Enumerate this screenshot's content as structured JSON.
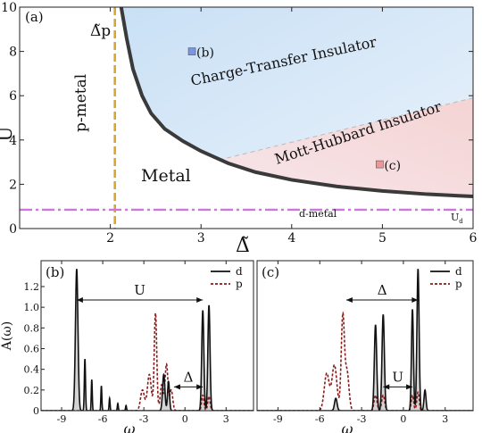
{
  "chart_data": [
    {
      "type": "line",
      "panel_label": "(a)",
      "xlabel": "Δ̃",
      "ylabel": "U",
      "xlim": [
        1,
        6
      ],
      "ylim": [
        0,
        10
      ],
      "x_ticks": [
        2,
        3,
        4,
        5,
        6
      ],
      "y_ticks": [
        0,
        2,
        4,
        6,
        8,
        10
      ],
      "regions": [
        {
          "label": "Charge-Transfer Insulator",
          "color": "#d6e8f8"
        },
        {
          "label": "Mott-Hubbard Insulator",
          "color": "#f7dcdc"
        },
        {
          "label": "Metal",
          "color": "#ffffff"
        },
        {
          "label": "p-metal",
          "color": "#ffffff"
        }
      ],
      "boundary": {
        "x": [
          2.12,
          2.18,
          2.25,
          2.35,
          2.45,
          2.6,
          2.8,
          3.0,
          3.3,
          3.6,
          4.0,
          4.5,
          5.0,
          5.5,
          6.0
        ],
        "y": [
          10,
          8.6,
          7.2,
          6.0,
          5.2,
          4.5,
          3.95,
          3.5,
          2.95,
          2.55,
          2.2,
          1.9,
          1.7,
          1.55,
          1.45
        ]
      },
      "ct_mh_divider": {
        "x": [
          3.2,
          6.0
        ],
        "y": [
          3.1,
          5.9
        ]
      },
      "delta_p_line": {
        "x": 2.05,
        "label": "Δ̃p",
        "color": "#d9a632"
      },
      "u_d_line": {
        "y": 0.85,
        "label": "U",
        "subscript": "d",
        "color": "#cc77dd"
      },
      "d_metal_label": "d-metal",
      "markers": [
        {
          "label": "(b)",
          "x": 2.9,
          "y": 8.0,
          "color": "#7b96dd"
        },
        {
          "label": "(c)",
          "x": 4.97,
          "y": 2.9,
          "color": "#e89a9a"
        }
      ]
    },
    {
      "type": "line",
      "panel_label": "(b)",
      "xlabel": "ω",
      "ylabel": "A(ω)",
      "xlim": [
        -10.5,
        5
      ],
      "ylim": [
        0,
        1.45
      ],
      "x_ticks": [
        -9,
        -6,
        -3,
        0,
        3
      ],
      "y_ticks": [
        0,
        0.2,
        0.4,
        0.6,
        0.8,
        1.0,
        1.2
      ],
      "series": [
        {
          "name": "d",
          "color": "#111111",
          "style": "solid",
          "peaks": [
            [
              -7.9,
              1.37,
              0.13
            ],
            [
              -7.3,
              0.5,
              0.06
            ],
            [
              -6.8,
              0.3,
              0.05
            ],
            [
              -6.1,
              0.24,
              0.05
            ],
            [
              -5.5,
              0.12,
              0.05
            ],
            [
              -4.9,
              0.07,
              0.05
            ],
            [
              -4.3,
              0.05,
              0.05
            ],
            [
              -1.55,
              0.35,
              0.12
            ],
            [
              -1.2,
              0.28,
              0.1
            ],
            [
              1.3,
              0.97,
              0.11
            ],
            [
              1.75,
              1.02,
              0.11
            ]
          ]
        },
        {
          "name": "p",
          "color": "#8b1a1a",
          "style": "dashed",
          "peaks": [
            [
              -3.1,
              0.2,
              0.2
            ],
            [
              -2.6,
              0.35,
              0.2
            ],
            [
              -2.15,
              0.94,
              0.13
            ],
            [
              -1.7,
              0.25,
              0.15
            ],
            [
              -1.35,
              0.45,
              0.15
            ],
            [
              -1.0,
              0.2,
              0.15
            ],
            [
              1.3,
              0.15,
              0.12
            ],
            [
              1.75,
              0.14,
              0.12
            ]
          ]
        }
      ],
      "annotations": [
        {
          "label": "U",
          "from": -7.9,
          "to": 1.3,
          "y": 1.07
        },
        {
          "label": "Δ",
          "from": -0.8,
          "to": 1.3,
          "y": 0.23
        }
      ]
    },
    {
      "type": "line",
      "panel_label": "(c)",
      "xlabel": "ω",
      "xlim": [
        -10.5,
        5
      ],
      "ylim": [
        0,
        1.45
      ],
      "x_ticks": [
        -9,
        -6,
        -3,
        0,
        3
      ],
      "series": [
        {
          "name": "d",
          "color": "#111111",
          "style": "solid",
          "peaks": [
            [
              -4.85,
              0.12,
              0.13
            ],
            [
              -2.0,
              0.83,
              0.12
            ],
            [
              -1.45,
              0.93,
              0.12
            ],
            [
              0.65,
              0.98,
              0.1
            ],
            [
              1.05,
              1.37,
              0.11
            ],
            [
              1.55,
              0.2,
              0.1
            ]
          ]
        },
        {
          "name": "p",
          "color": "#8b1a1a",
          "style": "dashed",
          "peaks": [
            [
              -5.5,
              0.36,
              0.25
            ],
            [
              -4.95,
              0.44,
              0.25
            ],
            [
              -4.35,
              0.9,
              0.16
            ],
            [
              -4.05,
              0.38,
              0.2
            ],
            [
              -2.0,
              0.15,
              0.15
            ],
            [
              -1.45,
              0.15,
              0.15
            ],
            [
              0.65,
              0.15,
              0.12
            ],
            [
              1.05,
              0.18,
              0.12
            ]
          ]
        }
      ],
      "annotations": [
        {
          "label": "Δ",
          "from": -4.1,
          "to": 1.05,
          "y": 1.07
        },
        {
          "label": "U",
          "from": -1.45,
          "to": 0.65,
          "y": 0.23
        }
      ]
    }
  ]
}
